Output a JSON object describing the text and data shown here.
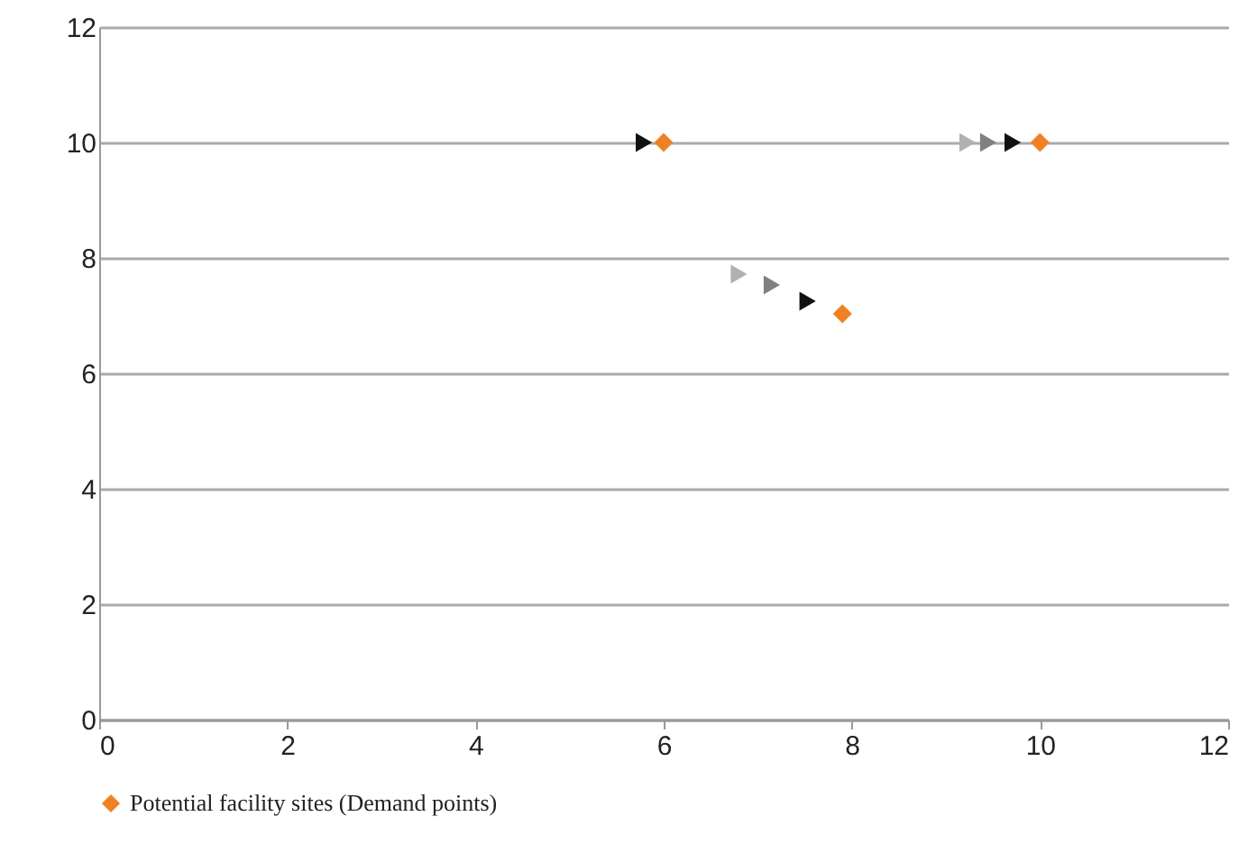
{
  "chart_data": {
    "type": "scatter",
    "xlim": [
      0,
      12
    ],
    "ylim": [
      0,
      12
    ],
    "xticks": [
      0,
      2,
      4,
      6,
      8,
      10,
      12
    ],
    "yticks": [
      0,
      2,
      4,
      6,
      8,
      10,
      12
    ],
    "grid": "y",
    "legend": "bottom",
    "marker": "diamond",
    "series": [
      {
        "color": "#b0b0b0",
        "marker": "triangle",
        "x": [
          9.23,
          6.8
        ],
        "values": [
          10,
          7.72
        ]
      },
      {
        "color": "#808080",
        "marker": "triangle",
        "x": [
          9.45,
          7.15
        ],
        "values": [
          10,
          7.53
        ]
      },
      {
        "color": "#111111",
        "marker": "triangle",
        "x": [
          5.79,
          9.71,
          7.53
        ],
        "values": [
          10,
          10,
          7.25
        ]
      },
      {
        "name": "Potential facility sites (Demand points)",
        "color": "#f28020",
        "x": [
          6,
          10,
          7.9
        ],
        "values": [
          10,
          10,
          7.03
        ]
      }
    ]
  }
}
